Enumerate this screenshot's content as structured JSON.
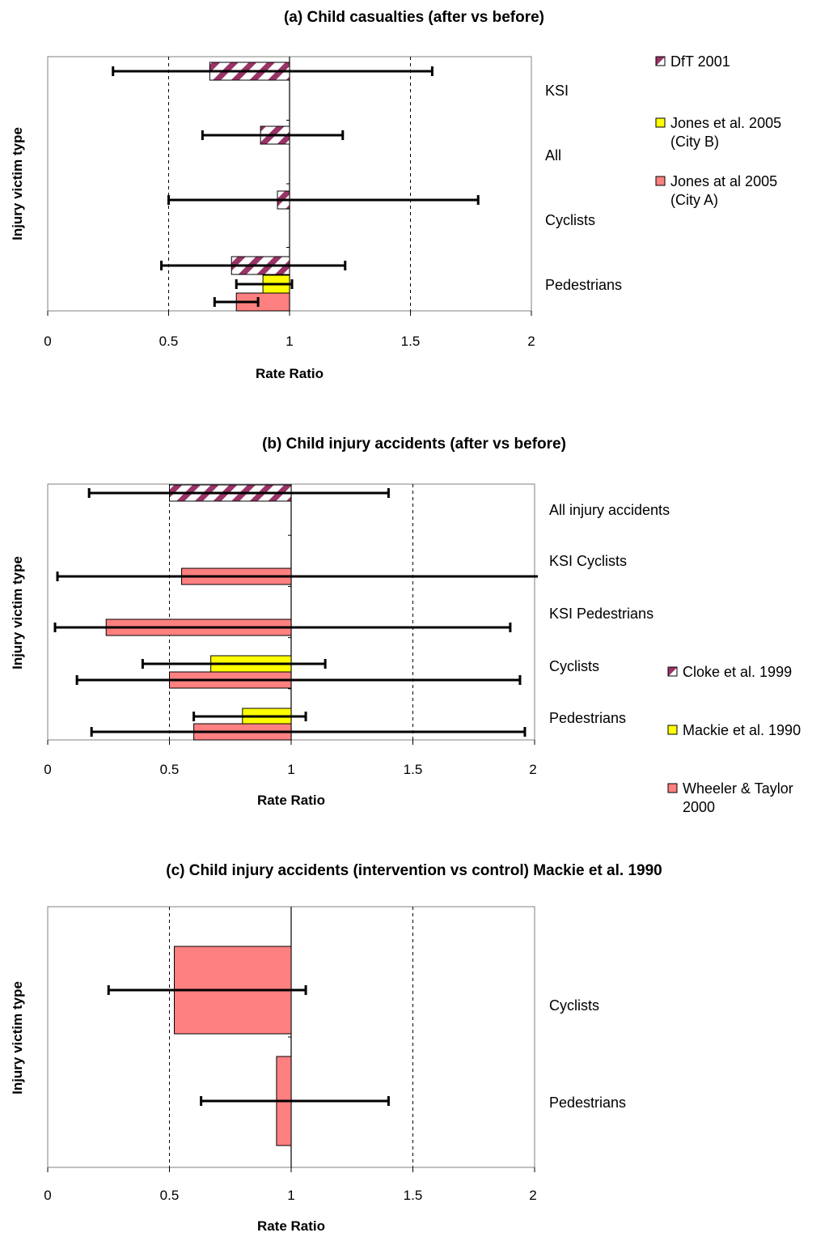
{
  "colors": {
    "dft_purple": "#993366",
    "yellow": "#ffff00",
    "salmon": "#ff8080"
  },
  "chart_data": [
    {
      "type": "bar",
      "orientation": "horizontal",
      "title": "(a) Child casualties (after vs before)",
      "xlabel": "Rate Ratio",
      "ylabel": "Injury victim type",
      "xlim": [
        0,
        2
      ],
      "xticks": [
        "0",
        "0.5",
        "1",
        "1.5",
        "2"
      ],
      "reference_line": 1,
      "dashed_gridlines": [
        0.5,
        1.5
      ],
      "legend_position": "right",
      "categories": [
        "KSI",
        "All",
        "Cyclists",
        "Pedestrians"
      ],
      "series": [
        {
          "name": "DfT 2001",
          "style": "hatched",
          "values": [
            0.67,
            0.88,
            0.95,
            0.76
          ],
          "ci_low": [
            0.27,
            0.64,
            0.5,
            0.47
          ],
          "ci_high": [
            1.59,
            1.22,
            1.78,
            1.23
          ]
        },
        {
          "name": "Jones et al. 2005 (City B)",
          "style": "yellow",
          "values": [
            null,
            null,
            null,
            0.89
          ],
          "ci_low": [
            null,
            null,
            null,
            0.78
          ],
          "ci_high": [
            null,
            null,
            null,
            1.01
          ]
        },
        {
          "name": "Jones at al 2005 (City A)",
          "style": "salmon",
          "values": [
            null,
            null,
            null,
            0.78
          ],
          "ci_low": [
            null,
            null,
            null,
            0.69
          ],
          "ci_high": [
            null,
            null,
            null,
            0.87
          ]
        }
      ]
    },
    {
      "type": "bar",
      "orientation": "horizontal",
      "title": "(b) Child injury accidents (after vs before)",
      "xlabel": "Rate Ratio",
      "ylabel": "Injury victim type",
      "xlim": [
        0,
        2
      ],
      "xticks": [
        "0",
        "0.5",
        "1",
        "1.5",
        "2"
      ],
      "reference_line": 1,
      "dashed_gridlines": [
        0.5,
        1.5
      ],
      "legend_position": "bottom-right",
      "categories": [
        "All injury accidents",
        "KSI Cyclists",
        "KSI Pedestrians",
        "Cyclists",
        "Pedestrians"
      ],
      "series": [
        {
          "name": "Cloke et al. 1999",
          "style": "hatched",
          "values": [
            0.5,
            null,
            null,
            null,
            null
          ],
          "ci_low": [
            0.17,
            null,
            null,
            null,
            null
          ],
          "ci_high": [
            1.4,
            null,
            null,
            null,
            null
          ]
        },
        {
          "name": "Mackie et al. 1990",
          "style": "yellow",
          "values": [
            null,
            null,
            null,
            0.67,
            0.8
          ],
          "ci_low": [
            null,
            null,
            null,
            0.39,
            0.6
          ],
          "ci_high": [
            null,
            null,
            null,
            1.14,
            1.06
          ]
        },
        {
          "name": "Wheeler & Taylor 2000",
          "style": "salmon",
          "values": [
            null,
            0.55,
            0.24,
            0.5,
            0.6
          ],
          "ci_low": [
            null,
            0.04,
            0.03,
            0.12,
            0.18
          ],
          "ci_high": [
            null,
            2.02,
            1.9,
            1.94,
            1.96
          ]
        }
      ]
    },
    {
      "type": "bar",
      "orientation": "horizontal",
      "title": "(c) Child injury accidents (intervention vs control) Mackie et al. 1990",
      "xlabel": "Rate Ratio",
      "ylabel": "Injury victim type",
      "xlim": [
        0,
        2
      ],
      "xticks": [
        "0",
        "0.5",
        "1",
        "1.5",
        "2"
      ],
      "reference_line": 1,
      "dashed_gridlines": [
        0.5,
        1.5
      ],
      "categories": [
        "Cyclists",
        "Pedestrians"
      ],
      "series": [
        {
          "style": "salmon",
          "values": [
            0.52,
            0.94
          ],
          "ci_low": [
            0.25,
            0.63
          ],
          "ci_high": [
            1.06,
            1.4
          ]
        }
      ]
    }
  ]
}
